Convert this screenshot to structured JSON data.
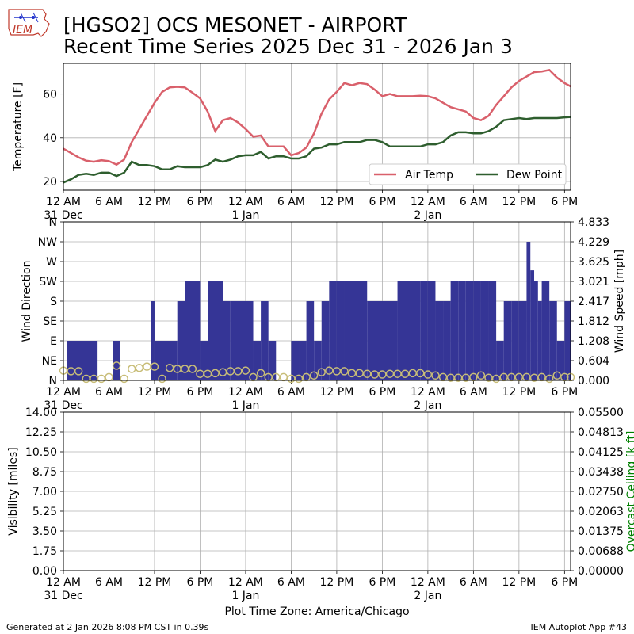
{
  "header": {
    "title_line1": "[HGSO2] OCS MESONET - AIRPORT",
    "title_line2": "Recent Time Series 2025 Dec 31 - 2026 Jan 3",
    "logo_text": "IEM"
  },
  "footer": {
    "generated": "Generated at 2 Jan 2026 8:08 PM CST in 0.39s",
    "app": "IEM Autoplot App #43"
  },
  "colors": {
    "air_temp": "#d9606b",
    "dew_point": "#2e5e2e",
    "wind_bars": "#353596",
    "wind_circles": "#c8bd78",
    "grid": "#b0b0b0",
    "ceiling_axis": "#008000"
  },
  "time_axis": {
    "tick_labels": [
      "12 AM",
      "6 AM",
      "12 PM",
      "6 PM",
      "12 AM",
      "6 AM",
      "12 PM",
      "6 PM",
      "12 AM",
      "6 AM",
      "12 PM",
      "6 PM"
    ],
    "tick_hours": [
      0,
      6,
      12,
      18,
      24,
      30,
      36,
      42,
      48,
      54,
      60,
      66
    ],
    "date_labels": [
      {
        "hour": 0,
        "label": "31 Dec"
      },
      {
        "hour": 24,
        "label": "1 Jan"
      },
      {
        "hour": 48,
        "label": "2 Jan"
      }
    ],
    "xlabel": "Plot Time Zone: America/Chicago",
    "range_hours": [
      0,
      66.8
    ]
  },
  "chart_data": [
    {
      "type": "line",
      "ylabel": "Temperature [F]",
      "ylim": [
        16,
        74
      ],
      "yticks": [
        20,
        40,
        60
      ],
      "grid": true,
      "legend": "lower-right",
      "x_unit": "hours since 12 AM 31 Dec",
      "series": [
        {
          "name": "Air Temp",
          "x": [
            0,
            1,
            2,
            3,
            4,
            5,
            6,
            7,
            8,
            9,
            10,
            11,
            12,
            13,
            14,
            15,
            16,
            17,
            18,
            19,
            20,
            21,
            22,
            23,
            24,
            25,
            26,
            27,
            28,
            29,
            30,
            31,
            32,
            33,
            34,
            35,
            36,
            37,
            38,
            39,
            40,
            41,
            42,
            43,
            44,
            45,
            46,
            47,
            48,
            49,
            50,
            51,
            52,
            53,
            54,
            55,
            56,
            57,
            58,
            59,
            60,
            61,
            62,
            63,
            64,
            65,
            66,
            66.8
          ],
          "values": [
            35,
            33,
            31,
            29.5,
            29,
            29.7,
            29.3,
            27.7,
            30,
            38,
            44,
            50,
            56,
            61,
            63,
            63.3,
            63,
            60.6,
            58,
            52,
            43,
            48,
            49,
            47,
            44,
            40.5,
            41,
            36,
            36,
            36,
            32,
            33,
            35.5,
            42,
            51,
            57.5,
            61,
            65,
            64,
            65,
            64.5,
            62,
            59,
            60,
            59,
            59,
            59,
            59.2,
            59,
            58,
            56,
            54,
            53,
            52,
            49,
            48,
            50,
            55,
            59,
            63,
            66,
            68,
            70,
            70.3,
            71,
            67.5,
            65,
            63.5
          ]
        },
        {
          "name": "Dew Point",
          "x": [
            0,
            1,
            2,
            3,
            4,
            5,
            6,
            7,
            8,
            9,
            10,
            11,
            12,
            13,
            14,
            15,
            16,
            17,
            18,
            19,
            20,
            21,
            22,
            23,
            24,
            25,
            26,
            27,
            28,
            29,
            30,
            31,
            32,
            33,
            34,
            35,
            36,
            37,
            38,
            39,
            40,
            41,
            42,
            43,
            44,
            45,
            46,
            47,
            48,
            49,
            50,
            51,
            52,
            53,
            54,
            55,
            56,
            57,
            58,
            59,
            60,
            61,
            62,
            63,
            64,
            65,
            66,
            66.8
          ],
          "values": [
            19.5,
            21,
            23,
            23.5,
            23,
            24,
            24,
            22.5,
            24,
            29,
            27.5,
            27.5,
            27,
            25.5,
            25.5,
            27,
            26.5,
            26.5,
            26.5,
            27.5,
            30,
            29,
            30,
            31.5,
            32,
            32,
            33.5,
            30.5,
            31.5,
            31.5,
            30.5,
            30.5,
            31.5,
            35,
            35.5,
            37,
            37,
            38,
            38,
            38,
            39,
            39,
            38,
            36,
            36,
            36,
            36,
            36,
            37,
            37,
            38,
            41,
            42.5,
            42.5,
            42,
            42,
            43,
            45,
            48,
            48.5,
            49,
            48.5,
            49,
            49,
            49,
            49,
            49.3,
            49.5
          ]
        }
      ]
    },
    {
      "type": "bar",
      "ylabel": "Wind Direction",
      "y2label": "Wind Speed [mph]",
      "ylim": [
        0,
        360
      ],
      "y_tick_labels": [
        "N",
        "NE",
        "E",
        "SE",
        "S",
        "SW",
        "W",
        "NW",
        "N"
      ],
      "y2lim": [
        0,
        4.833
      ],
      "y2_tick_labels": [
        "0.000",
        "0.604",
        "1.208",
        "1.812",
        "2.417",
        "3.021",
        "3.625",
        "4.229",
        "4.833"
      ],
      "grid": true,
      "direction_bars": {
        "name": "Wind Direction",
        "x_start": [
          0.5,
          4.5,
          6.5,
          8.5,
          11.5,
          12,
          15,
          16,
          18,
          19,
          21,
          22,
          25,
          26,
          27,
          28,
          29,
          30,
          31,
          32,
          33,
          34,
          35,
          36,
          37,
          40,
          44,
          47,
          48,
          49,
          50,
          51,
          52,
          53,
          54,
          55,
          56,
          57,
          58,
          59,
          60,
          61,
          61.5,
          62,
          62.5,
          63,
          64,
          65,
          66
        ],
        "x_end": [
          4.5,
          5.5,
          7.5,
          11.5,
          12,
          15,
          16,
          18,
          19,
          21,
          22,
          25,
          26,
          27,
          28,
          29,
          30,
          31,
          32,
          33,
          34,
          35,
          36,
          37,
          40,
          44,
          47,
          48,
          49,
          50,
          51,
          52,
          53,
          54,
          55,
          56,
          57,
          58,
          59,
          60,
          61,
          61.5,
          62,
          62.5,
          63,
          64,
          65,
          66,
          66.8
        ],
        "values": [
          90,
          0,
          90,
          0,
          180,
          90,
          180,
          225,
          90,
          225,
          180,
          180,
          90,
          180,
          90,
          0,
          0,
          90,
          90,
          180,
          90,
          180,
          225,
          225,
          225,
          180,
          225,
          225,
          225,
          180,
          180,
          225,
          225,
          225,
          225,
          225,
          225,
          90,
          180,
          180,
          180,
          315,
          250,
          225,
          180,
          225,
          180,
          90,
          180
        ]
      },
      "speed_points": {
        "name": "Wind Speed",
        "x": [
          0,
          1,
          2,
          3,
          4,
          5,
          6,
          7,
          8,
          9,
          10,
          11,
          12,
          13,
          14,
          15,
          16,
          17,
          18,
          19,
          20,
          21,
          22,
          23,
          24,
          25,
          26,
          27,
          28,
          29,
          30,
          31,
          32,
          33,
          34,
          35,
          36,
          37,
          38,
          39,
          40,
          41,
          42,
          43,
          44,
          45,
          46,
          47,
          48,
          49,
          50,
          51,
          52,
          53,
          54,
          55,
          56,
          57,
          58,
          59,
          60,
          61,
          62,
          63,
          64,
          65,
          66,
          66.8
        ],
        "values": [
          0.3,
          0.28,
          0.28,
          0.05,
          0.05,
          0.05,
          0.1,
          0.45,
          0.05,
          0.35,
          0.38,
          0.42,
          0.42,
          0.05,
          0.38,
          0.35,
          0.35,
          0.35,
          0.2,
          0.2,
          0.22,
          0.25,
          0.28,
          0.28,
          0.3,
          0.1,
          0.22,
          0.1,
          0.1,
          0.1,
          0.05,
          0.05,
          0.1,
          0.15,
          0.25,
          0.3,
          0.28,
          0.28,
          0.22,
          0.22,
          0.2,
          0.18,
          0.18,
          0.2,
          0.2,
          0.2,
          0.22,
          0.22,
          0.18,
          0.15,
          0.1,
          0.08,
          0.08,
          0.08,
          0.1,
          0.15,
          0.08,
          0.05,
          0.1,
          0.1,
          0.1,
          0.1,
          0.08,
          0.1,
          0.05,
          0.15,
          0.1,
          0.1
        ]
      }
    },
    {
      "type": "line",
      "ylabel": "Visibility [miles]",
      "y2label": "Overcast Ceiling [k ft]",
      "ylim": [
        0,
        14
      ],
      "y_tick_labels": [
        "0.00",
        "1.75",
        "3.50",
        "5.25",
        "7.00",
        "8.75",
        "10.50",
        "12.25",
        "14.00"
      ],
      "y2lim": [
        0,
        0.055
      ],
      "y2_tick_labels": [
        "0.00000",
        "0.00688",
        "0.01375",
        "0.02063",
        "0.02750",
        "0.03438",
        "0.04125",
        "0.04813",
        "0.05500"
      ],
      "grid": true,
      "series": []
    }
  ]
}
